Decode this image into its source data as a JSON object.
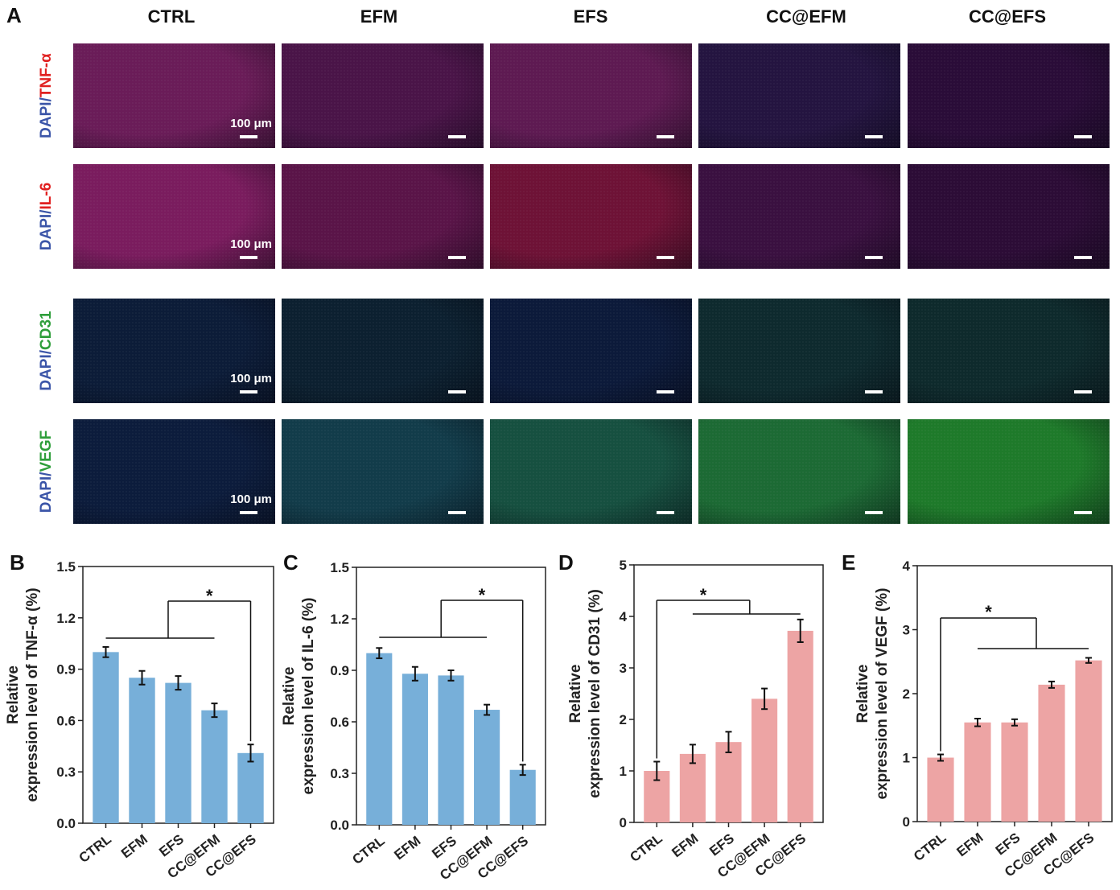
{
  "panel_labels": {
    "a": "A",
    "b": "B",
    "c": "C",
    "d": "D",
    "e": "E"
  },
  "columns": [
    "CTRL",
    "EFM",
    "EFS",
    "CC@EFM",
    "CC@EFS"
  ],
  "rows": [
    {
      "prefix": "DAPI/",
      "marker": "TNF-α",
      "marker_color": "#e02020"
    },
    {
      "prefix": "DAPI/",
      "marker": "IL-6",
      "marker_color": "#e02020"
    },
    {
      "prefix": "DAPI/",
      "marker": "CD31",
      "marker_color": "#2e9e3a"
    },
    {
      "prefix": "DAPI/",
      "marker": "VEGF",
      "marker_color": "#2e9e3a"
    }
  ],
  "scale_bar_label": "100 μm",
  "tile_colors": [
    [
      "#6a1c58",
      "#4a1448",
      "#5e1a52",
      "#241440",
      "#2a0c38"
    ],
    [
      "#7a1c5e",
      "#5a1448",
      "#6e1236",
      "#3a1040",
      "#2c0c36"
    ],
    [
      "#0c1c38",
      "#0c2030",
      "#0c1a3a",
      "#0e2a2e",
      "#0e2a2c"
    ],
    [
      "#0c1c3c",
      "#123c4a",
      "#165040",
      "#1c6a34",
      "#1e7a2a"
    ]
  ],
  "chart_data": [
    {
      "type": "bar",
      "panel": "B",
      "categories": [
        "CTRL",
        "EFM",
        "EFS",
        "CC@EFM",
        "CC@EFS"
      ],
      "values": [
        1.0,
        0.85,
        0.82,
        0.66,
        0.41
      ],
      "errors": [
        0.03,
        0.04,
        0.04,
        0.04,
        0.05
      ],
      "ylabel_line1": "Relative",
      "ylabel_line2": "expression level of TNF-α (%)",
      "ylim": [
        0,
        1.5
      ],
      "yticks": [
        "0.0",
        "0.3",
        "0.6",
        "0.9",
        "1.2",
        "1.5"
      ],
      "bar_color": "#77afd9",
      "significance": "*"
    },
    {
      "type": "bar",
      "panel": "C",
      "categories": [
        "CTRL",
        "EFM",
        "EFS",
        "CC@EFM",
        "CC@EFS"
      ],
      "values": [
        1.0,
        0.88,
        0.87,
        0.67,
        0.32
      ],
      "errors": [
        0.03,
        0.04,
        0.03,
        0.03,
        0.03
      ],
      "ylabel_line1": "Relative",
      "ylabel_line2": "expression level of IL-6 (%)",
      "ylim": [
        0,
        1.5
      ],
      "yticks": [
        "0.0",
        "0.3",
        "0.6",
        "0.9",
        "1.2",
        "1.5"
      ],
      "bar_color": "#77afd9",
      "significance": "*"
    },
    {
      "type": "bar",
      "panel": "D",
      "categories": [
        "CTRL",
        "EFM",
        "EFS",
        "CC@EFM",
        "CC@EFS"
      ],
      "values": [
        1.0,
        1.33,
        1.56,
        2.4,
        3.72
      ],
      "errors": [
        0.18,
        0.18,
        0.2,
        0.2,
        0.22
      ],
      "ylabel_line1": "Relative",
      "ylabel_line2": "expression level of CD31 (%)",
      "ylim": [
        0,
        5
      ],
      "yticks": [
        "0",
        "1",
        "2",
        "3",
        "4",
        "5"
      ],
      "bar_color": "#eda4a4",
      "significance": "*"
    },
    {
      "type": "bar",
      "panel": "E",
      "categories": [
        "CTRL",
        "EFM",
        "EFS",
        "CC@EFM",
        "CC@EFS"
      ],
      "values": [
        1.0,
        1.55,
        1.55,
        2.14,
        2.52
      ],
      "errors": [
        0.05,
        0.06,
        0.05,
        0.05,
        0.04
      ],
      "ylabel_line1": "Relative",
      "ylabel_line2": "expression level of VEGF (%)",
      "ylim": [
        0,
        4
      ],
      "yticks": [
        "0",
        "1",
        "2",
        "3",
        "4"
      ],
      "bar_color": "#eda4a4",
      "significance": "*"
    }
  ]
}
